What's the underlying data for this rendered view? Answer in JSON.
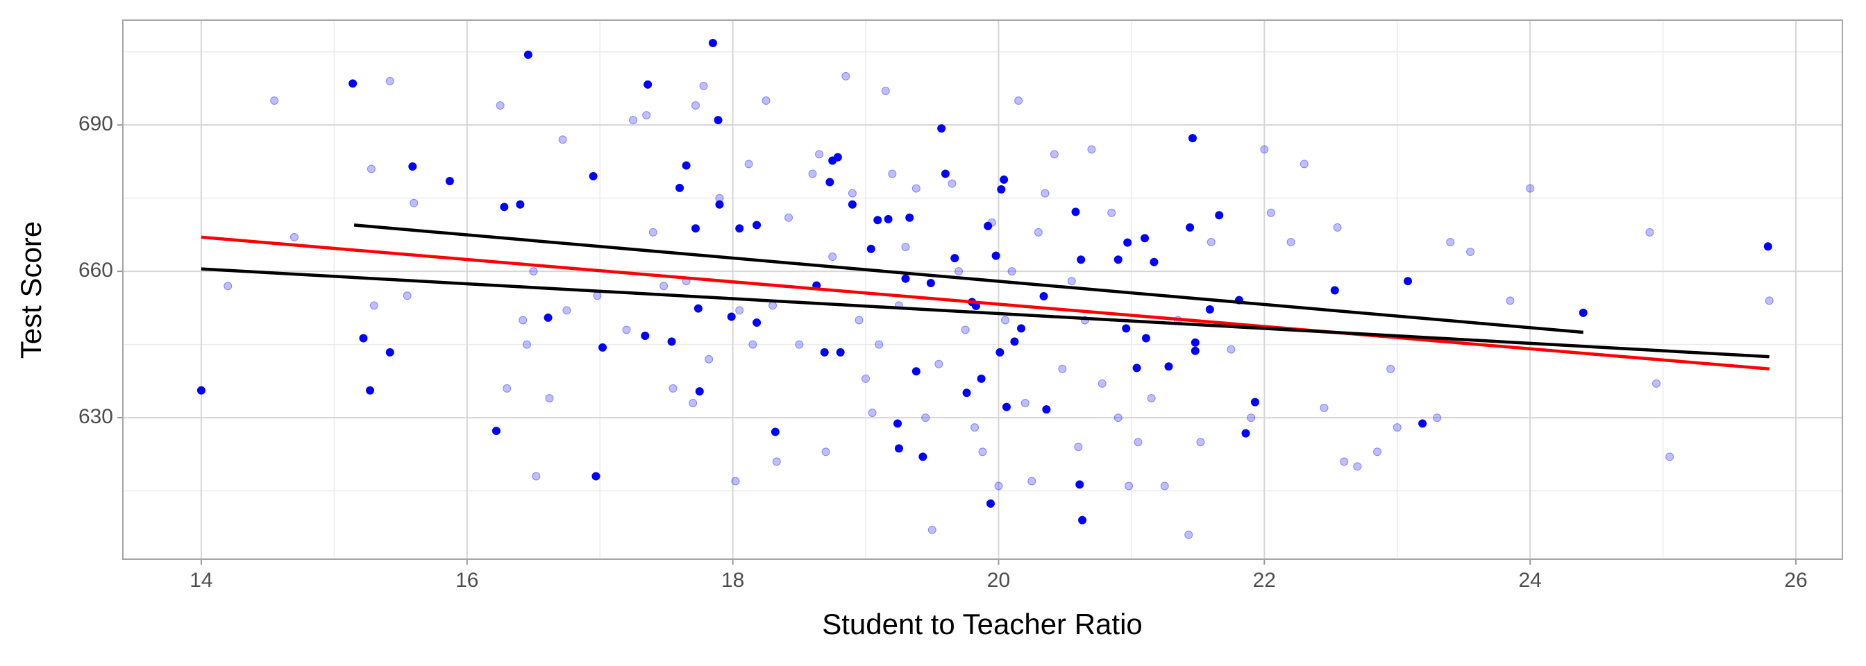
{
  "chart_data": {
    "type": "scatter",
    "x_label": "Student to Teacher Ratio",
    "y_label": "Test Score",
    "xlim": [
      13.41,
      26.35
    ],
    "ylim": [
      601,
      711.5
    ],
    "xticks": [
      14,
      16,
      18,
      20,
      22,
      24,
      26
    ],
    "yticks": [
      630,
      660,
      690
    ],
    "xminor": [
      15,
      17,
      19,
      21,
      23,
      25
    ],
    "yminor": [
      615,
      645,
      675,
      705
    ],
    "grid": true,
    "series": [
      {
        "color": "#0000ff",
        "alpha": 0.25,
        "x": [
          14.55,
          14.7,
          14.2,
          15.28,
          15.3,
          15.42,
          15.55,
          15.6,
          16.25,
          16.3,
          16.42,
          16.45,
          16.5,
          16.52,
          16.62,
          16.72,
          16.75,
          16.98,
          17.2,
          17.25,
          17.35,
          17.4,
          17.48,
          17.55,
          17.65,
          17.7,
          17.72,
          17.78,
          17.82,
          17.9,
          18.02,
          18.05,
          18.12,
          18.15,
          18.25,
          18.3,
          18.33,
          18.42,
          18.5,
          18.6,
          18.65,
          18.7,
          18.75,
          18.85,
          18.9,
          18.95,
          19.0,
          19.05,
          19.1,
          19.15,
          19.2,
          19.25,
          19.3,
          19.38,
          19.45,
          19.5,
          19.55,
          19.65,
          19.7,
          19.75,
          19.82,
          19.88,
          19.95,
          20.0,
          20.05,
          20.1,
          20.15,
          20.2,
          20.25,
          20.3,
          20.35,
          20.42,
          20.48,
          20.55,
          20.6,
          20.65,
          20.7,
          20.78,
          20.85,
          20.9,
          20.98,
          21.05,
          21.15,
          21.25,
          21.35,
          21.43,
          21.52,
          21.6,
          21.75,
          21.9,
          22.0,
          22.05,
          22.2,
          22.3,
          22.45,
          22.55,
          22.6,
          22.7,
          22.85,
          22.95,
          23.0,
          23.3,
          23.4,
          23.55,
          23.85,
          24.0,
          24.9,
          24.95,
          25.05,
          25.8
        ],
        "values": [
          695,
          667,
          657,
          681,
          653,
          699,
          655,
          674,
          694,
          636,
          650,
          645,
          660,
          618,
          634,
          687,
          652,
          655,
          648,
          691,
          692,
          668,
          657,
          636,
          658,
          633,
          694,
          698,
          642,
          675,
          617,
          652,
          682,
          645,
          695,
          653,
          621,
          671,
          645,
          680,
          684,
          623,
          663,
          700,
          676,
          650,
          638,
          631,
          645,
          697,
          680,
          653,
          665,
          677,
          630,
          607,
          641,
          678,
          660,
          648,
          628,
          623,
          670,
          616,
          650,
          660,
          695,
          633,
          617,
          668,
          676,
          684,
          640,
          658,
          624,
          650,
          685,
          637,
          672,
          630,
          616,
          625,
          634,
          616,
          650,
          606,
          625,
          666,
          644,
          630,
          685,
          672,
          666,
          682,
          632,
          669,
          621,
          620,
          623,
          640,
          628,
          630,
          666,
          664,
          654,
          677,
          668,
          637,
          622,
          654
        ]
      },
      {
        "color": "#0000ff",
        "alpha": 1,
        "x": [
          14.0,
          15.14,
          15.22,
          15.27,
          15.42,
          15.59,
          15.87,
          16.22,
          16.28,
          16.4,
          16.46,
          16.61,
          16.95,
          16.97,
          17.02,
          17.34,
          17.54,
          17.36,
          17.6,
          17.65,
          17.72,
          17.74,
          17.75,
          17.85,
          17.89,
          17.9,
          17.99,
          18.05,
          18.18,
          18.18,
          18.32,
          18.63,
          18.69,
          18.73,
          18.75,
          18.79,
          18.81,
          18.9,
          19.04,
          19.09,
          19.17,
          19.24,
          19.25,
          19.3,
          19.33,
          19.38,
          19.43,
          19.49,
          19.57,
          19.6,
          19.67,
          19.76,
          19.8,
          19.83,
          19.87,
          19.92,
          19.94,
          19.98,
          20.01,
          20.02,
          20.04,
          20.06,
          20.12,
          20.17,
          20.34,
          20.36,
          20.58,
          20.61,
          20.62,
          20.63,
          20.9,
          20.96,
          20.97,
          21.04,
          21.1,
          21.11,
          21.17,
          21.28,
          21.44,
          21.46,
          21.48,
          21.48,
          21.59,
          21.66,
          21.81,
          21.86,
          21.93,
          22.53,
          23.08,
          23.19,
          24.4,
          25.79
        ],
        "values": [
          635.6,
          698.5,
          646.3,
          635.6,
          643.4,
          681.5,
          678.5,
          627.3,
          673.2,
          673.7,
          704.4,
          650.5,
          679.5,
          618.0,
          644.4,
          646.8,
          645.6,
          698.3,
          677.1,
          681.7,
          668.8,
          652.4,
          635.4,
          706.8,
          691.0,
          673.7,
          650.7,
          668.8,
          669.5,
          649.5,
          627.1,
          657.1,
          643.4,
          678.3,
          682.7,
          683.4,
          643.4,
          673.7,
          664.6,
          670.5,
          670.7,
          628.8,
          623.7,
          658.5,
          671.0,
          639.5,
          622.0,
          657.6,
          689.3,
          680.0,
          662.7,
          635.1,
          653.7,
          652.9,
          638.0,
          669.3,
          612.4,
          663.2,
          643.4,
          676.8,
          678.8,
          632.2,
          645.6,
          648.3,
          654.9,
          631.7,
          672.2,
          616.3,
          662.4,
          609.0,
          662.4,
          648.3,
          665.9,
          640.2,
          666.8,
          646.3,
          661.9,
          640.5,
          669.0,
          687.3,
          643.7,
          645.4,
          652.2,
          671.5,
          654.1,
          626.8,
          633.2,
          656.1,
          658.0,
          628.8,
          651.5,
          665.1
        ]
      }
    ],
    "lines": [
      {
        "color": "#ff0000",
        "x": [
          14.0,
          25.8
        ],
        "values": [
          667,
          640
        ]
      },
      {
        "color": "#000000",
        "x": [
          15.15,
          24.4
        ],
        "values": [
          669.5,
          647.5
        ]
      },
      {
        "color": "#000000",
        "x": [
          14.0,
          25.8
        ],
        "values": [
          660.5,
          642.5
        ]
      }
    ]
  }
}
